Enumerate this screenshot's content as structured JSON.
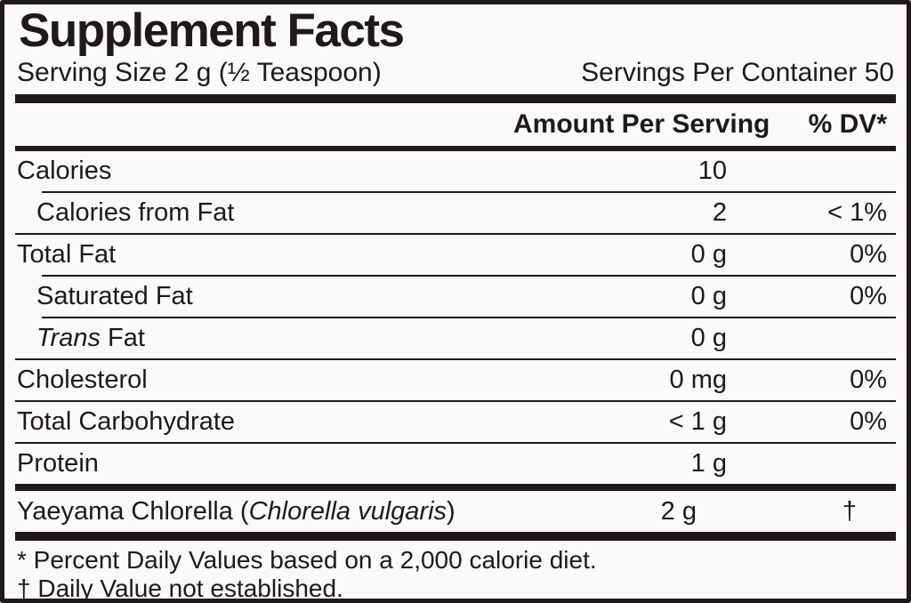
{
  "title": "Supplement Facts",
  "serving": {
    "size": "Serving Size 2 g (½ Teaspoon)",
    "per_container": "Servings Per Container 50"
  },
  "table": {
    "amount_header": "Amount Per Serving",
    "dv_header": "% DV*",
    "rows": [
      {
        "pre": "Calories",
        "italic": "",
        "post": "",
        "amount": "10",
        "dv": ""
      },
      {
        "pre": "Calories from Fat",
        "italic": "",
        "post": "",
        "amount": "2",
        "dv": "< 1%"
      },
      {
        "pre": "Total Fat",
        "italic": "",
        "post": "",
        "amount": "0 g",
        "dv": "0%"
      },
      {
        "pre": "Saturated Fat",
        "italic": "",
        "post": "",
        "amount": "0 g",
        "dv": "0%"
      },
      {
        "pre": "",
        "italic": "Trans",
        "post": " Fat",
        "amount": "0 g",
        "dv": ""
      },
      {
        "pre": "Cholesterol",
        "italic": "",
        "post": "",
        "amount": "0 mg",
        "dv": "0%"
      },
      {
        "pre": "Total Carbohydrate",
        "italic": "",
        "post": "",
        "amount": "< 1 g",
        "dv": "0%"
      },
      {
        "pre": "Protein",
        "italic": "",
        "post": "",
        "amount": "1 g",
        "dv": ""
      },
      {
        "pre": "Yaeyama Chlorella (",
        "italic": "Chlorella vulgaris",
        "post": ")",
        "amount": "2 g",
        "dv": "†"
      }
    ]
  },
  "footnotes": [
    "* Percent Daily Values based on a 2,000 calorie diet.",
    "† Daily Value not established."
  ],
  "colors": {
    "text": "#1d1a19",
    "background": "#fbfaf8",
    "rule": "#1d1a19"
  }
}
